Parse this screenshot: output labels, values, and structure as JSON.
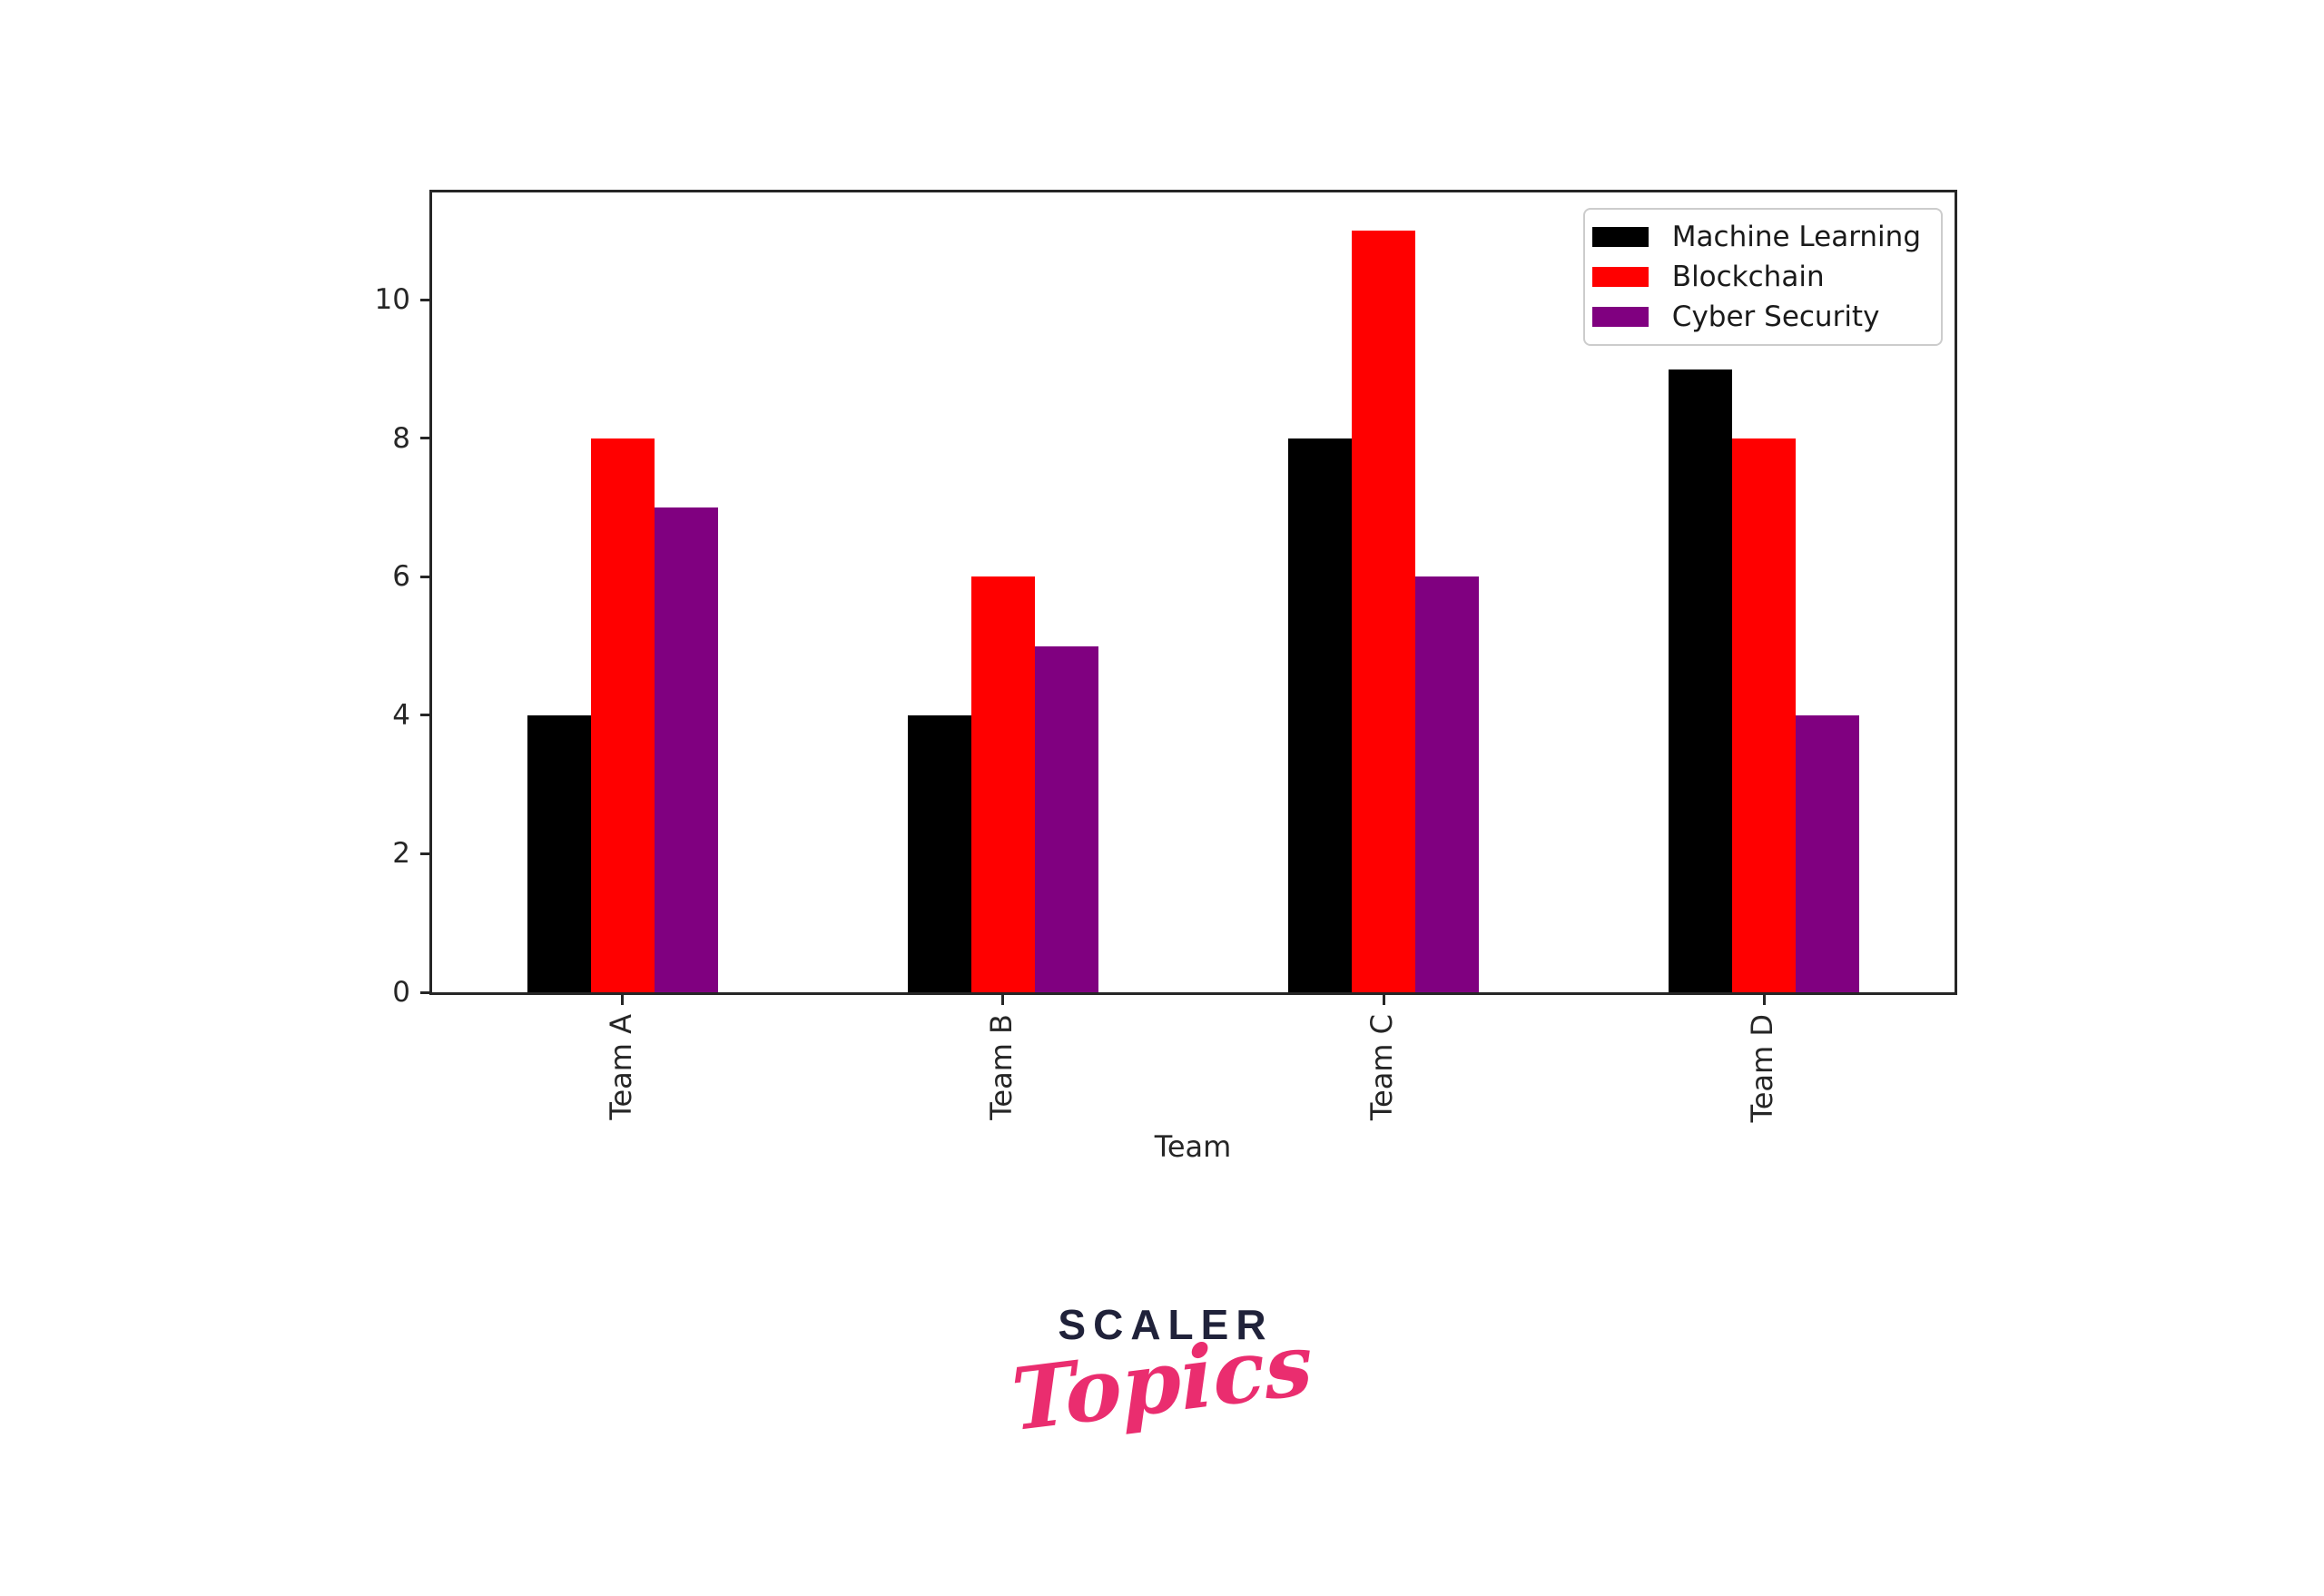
{
  "chart_data": {
    "type": "bar",
    "title": "",
    "categories": [
      "Team A",
      "Team B",
      "Team C",
      "Team D"
    ],
    "series": [
      {
        "name": "Machine Learning",
        "color": "#000000",
        "values": [
          4,
          4,
          8,
          9
        ]
      },
      {
        "name": "Blockchain",
        "color": "#ff0000",
        "values": [
          8,
          6,
          11,
          8
        ]
      },
      {
        "name": "Cyber Security",
        "color": "#800080",
        "values": [
          7,
          5,
          6,
          4
        ]
      }
    ],
    "xlabel": "Team",
    "ylabel": "",
    "ylim": [
      0,
      11.55
    ],
    "yticks": [
      0,
      2,
      4,
      6,
      8,
      10
    ],
    "legend_position": "upper-right",
    "grid": false,
    "axis_color": "#262626"
  },
  "logo": {
    "brand": "SCALER",
    "sub": "Topics",
    "brand_color": "#20223a",
    "accent_color": "#ea2d6f"
  }
}
